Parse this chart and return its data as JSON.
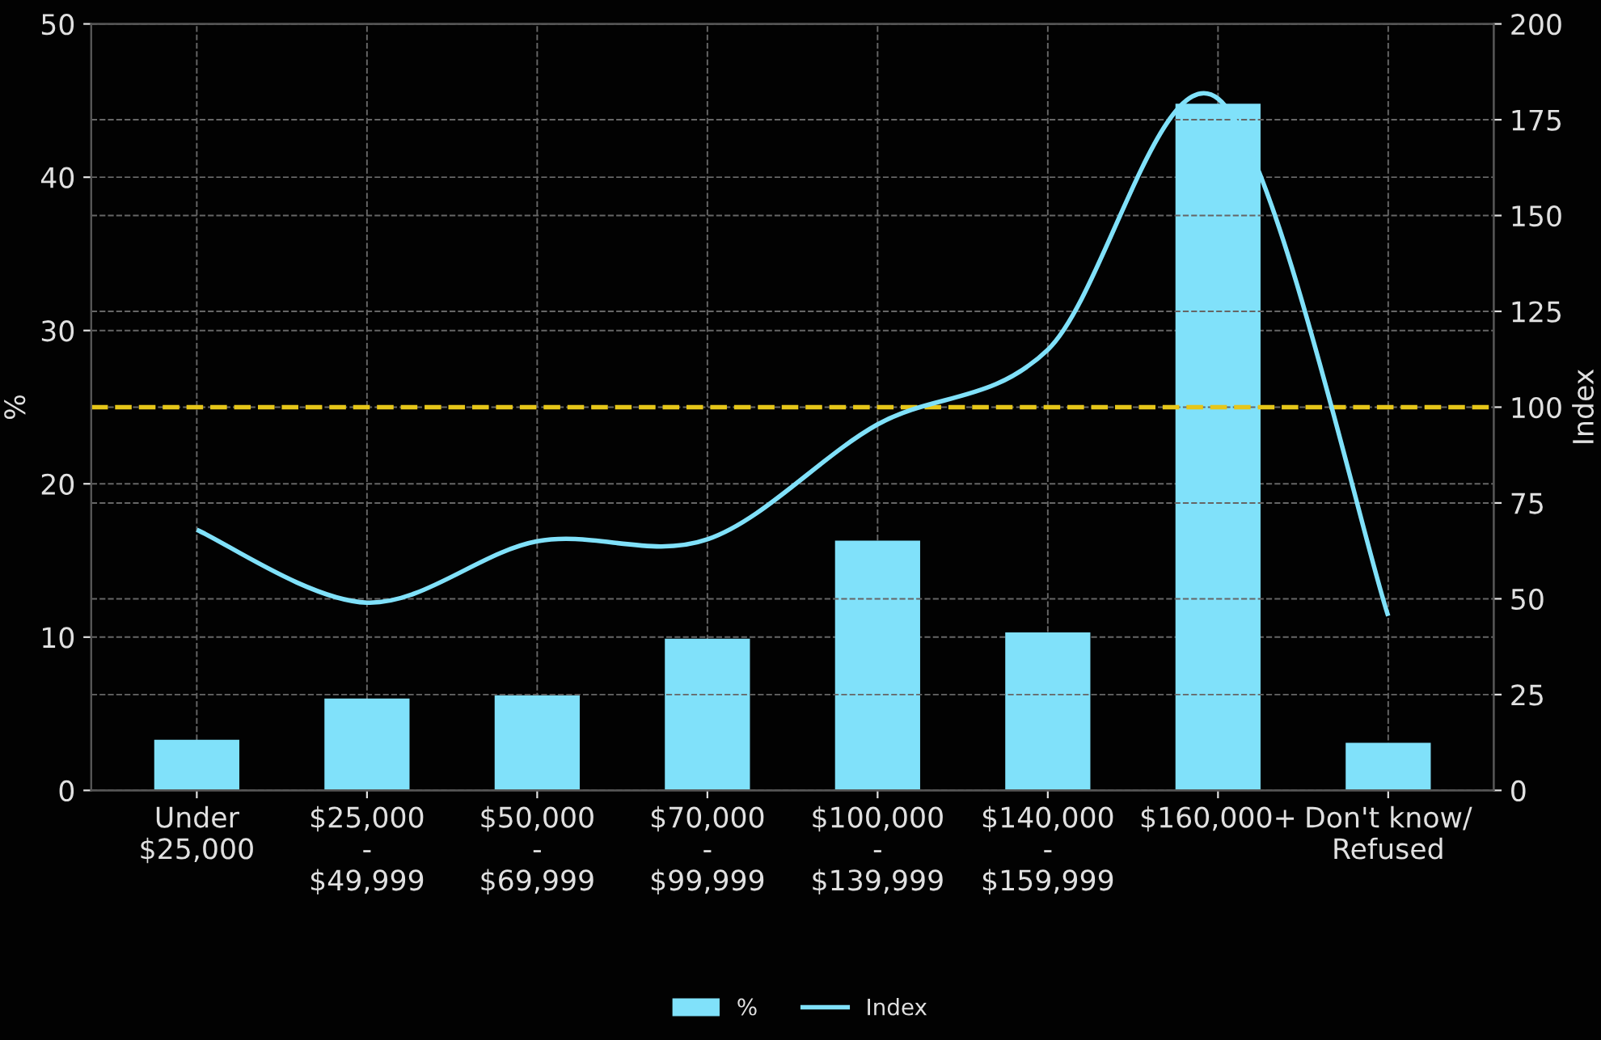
{
  "chart_data": {
    "type": "bar",
    "categories": [
      "Under\n$25,000",
      "$25,000\n-\n$49,999",
      "$50,000\n-\n$69,999",
      "$70,000\n-\n$99,999",
      "$100,000\n-\n$139,999",
      "$140,000\n-\n$159,999",
      "$160,000+",
      "Don't know/\nRefused"
    ],
    "series": [
      {
        "name": "%",
        "color": "#80e1fa",
        "values": [
          3.3,
          6.0,
          6.2,
          9.9,
          16.3,
          10.3,
          44.8,
          3.1
        ]
      },
      {
        "name": "Index",
        "type": "line",
        "axis": "y2",
        "color": "#80e1fa",
        "values": [
          68,
          49,
          65,
          65.5,
          95.5,
          115,
          180.5,
          45.5
        ]
      }
    ],
    "ylabel": "%",
    "y2label": "Index",
    "ylim": [
      0,
      50
    ],
    "yticks": [
      0,
      10,
      20,
      30,
      40,
      50
    ],
    "y2lim": [
      0,
      200
    ],
    "y2ticks": [
      0,
      25,
      50,
      75,
      100,
      125,
      150,
      175,
      200
    ],
    "ref_lines": [
      {
        "axis": "y2",
        "value": 100,
        "color": "#e6c619",
        "line_style": "dashed"
      }
    ],
    "grid": true,
    "legend": "bottom"
  }
}
